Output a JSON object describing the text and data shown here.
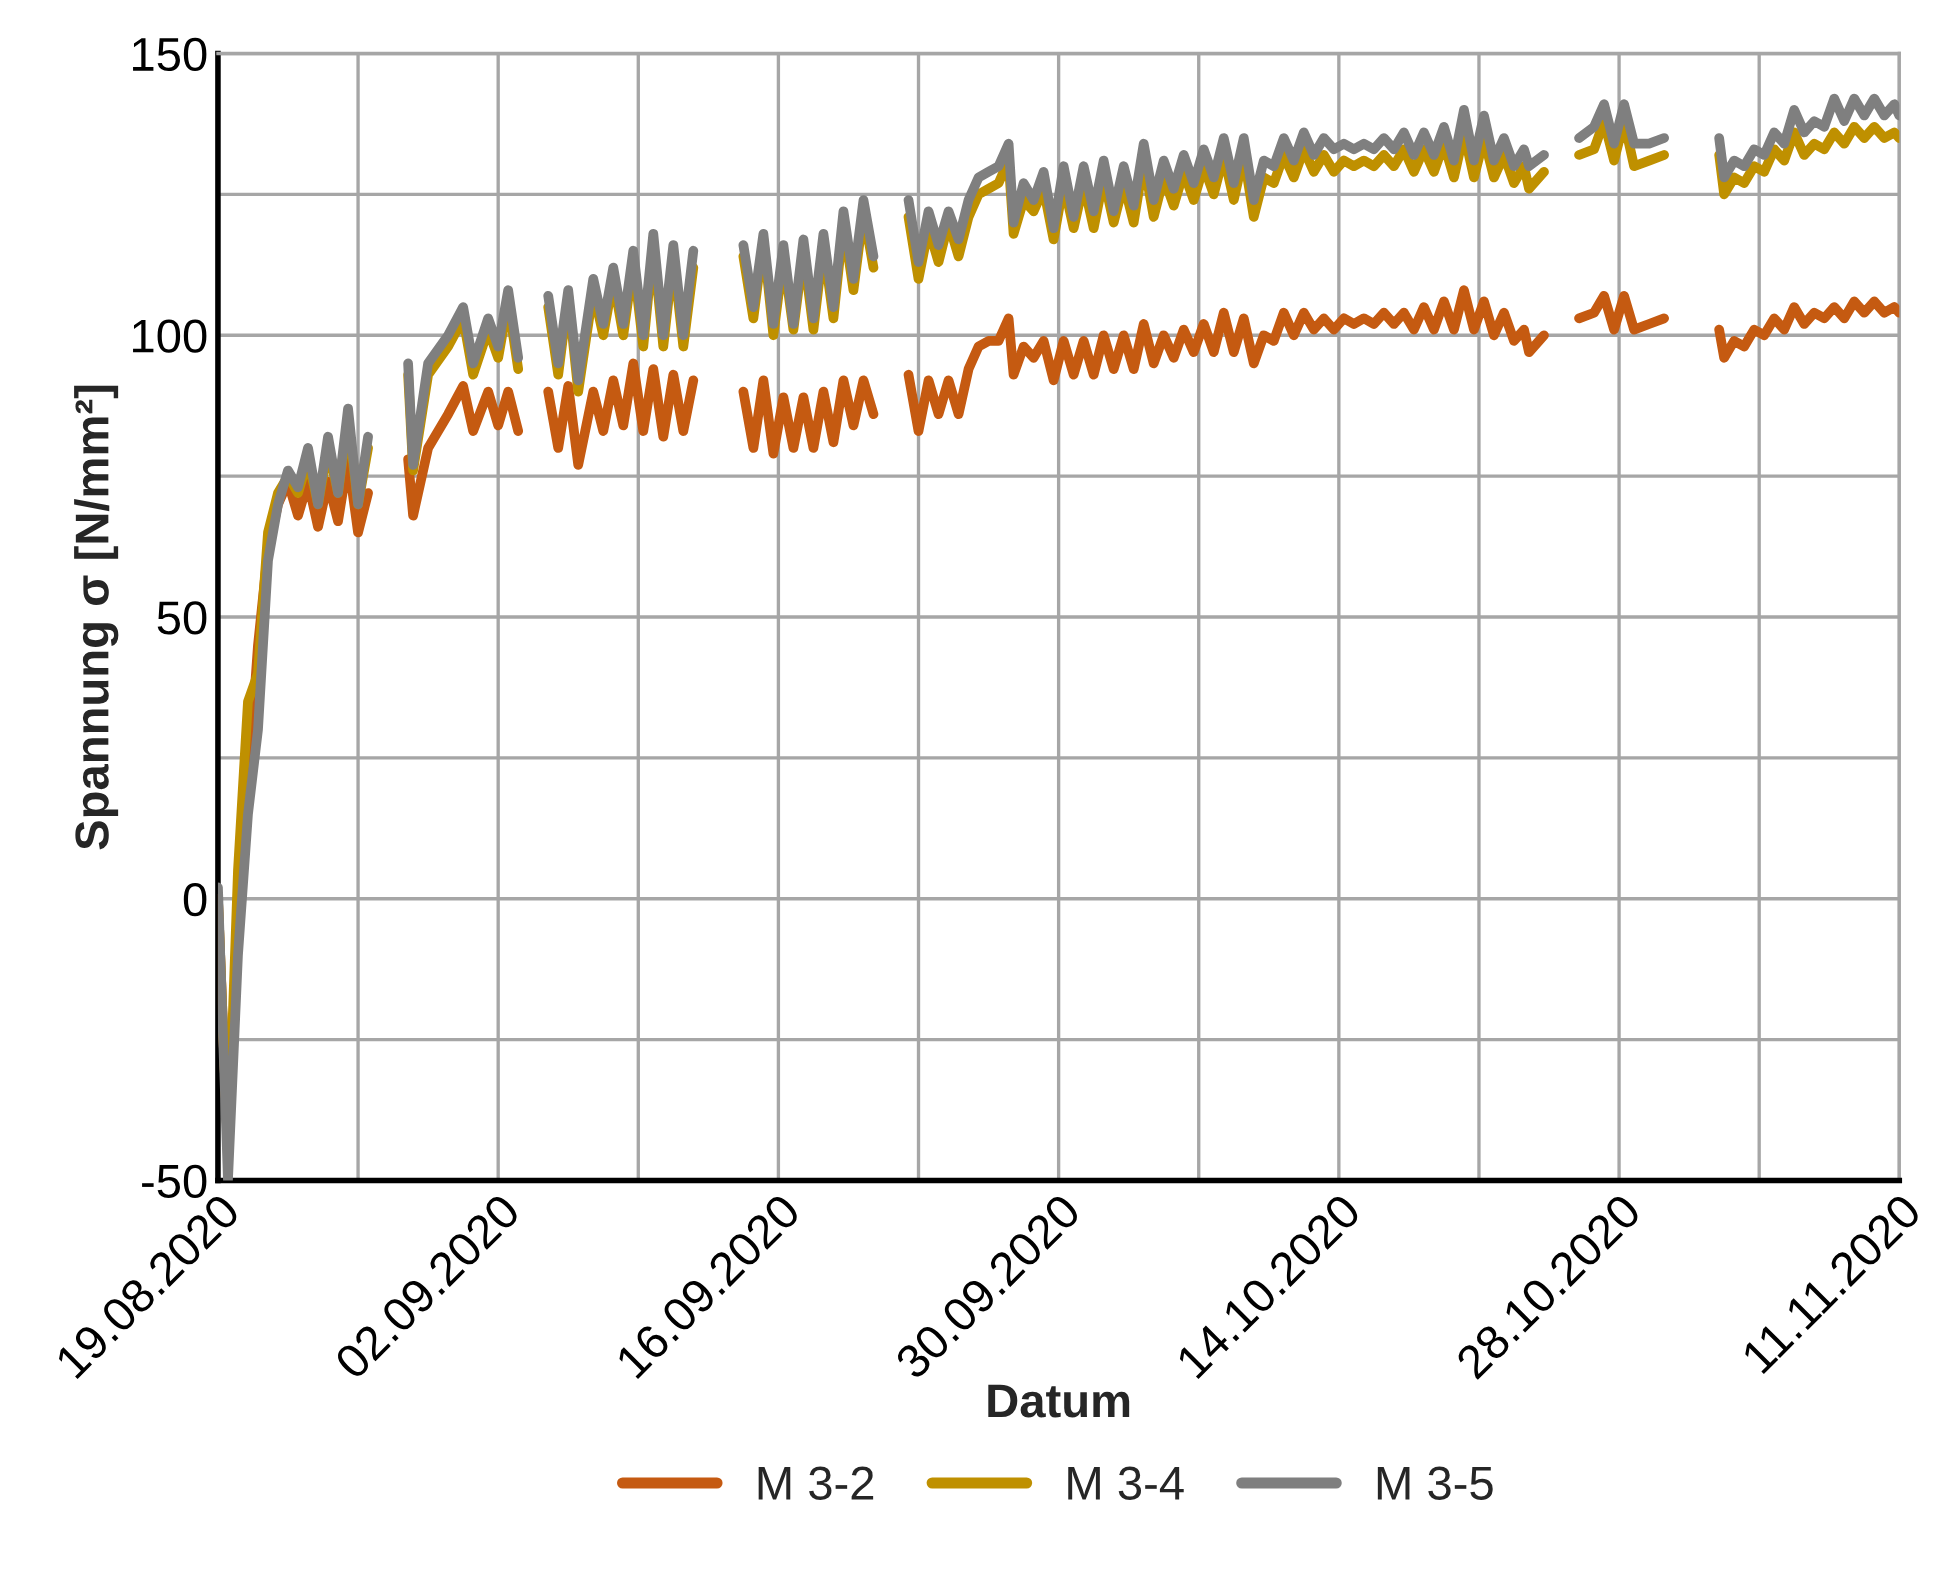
{
  "chart_data": {
    "type": "line",
    "xlabel": "Datum",
    "ylabel": "Spannung σ [N/mm²]",
    "x": [
      "2020-08-19T00:00",
      "2020-08-19T12:00",
      "2020-08-20T00:00",
      "2020-08-20T12:00",
      "2020-08-21T00:00",
      "2020-08-21T12:00",
      "2020-08-22T00:00",
      "2020-08-22T12:00",
      "2020-08-23T00:00",
      "2020-08-23T12:00",
      "2020-08-24T00:00",
      "2020-08-24T12:00",
      "2020-08-25T00:00",
      "2020-08-25T12:00",
      "2020-08-26T00:00",
      "2020-08-26T12:00",
      "2020-08-27T12:00",
      "2020-08-28T12:00",
      "2020-08-28T18:00",
      "2020-08-29T12:00",
      "2020-08-30T12:00",
      "2020-08-31T06:00",
      "2020-08-31T18:00",
      "2020-09-01T12:00",
      "2020-09-02T00:00",
      "2020-09-02T12:00",
      "2020-09-03T00:00",
      "2020-09-04T00:00",
      "2020-09-04T12:00",
      "2020-09-05T00:00",
      "2020-09-05T12:00",
      "2020-09-06T00:00",
      "2020-09-06T18:00",
      "2020-09-07T06:00",
      "2020-09-07T18:00",
      "2020-09-08T06:00",
      "2020-09-08T18:00",
      "2020-09-09T06:00",
      "2020-09-09T18:00",
      "2020-09-10T06:00",
      "2020-09-10T18:00",
      "2020-09-11T06:00",
      "2020-09-11T18:00",
      "2020-09-13T00:00",
      "2020-09-14T06:00",
      "2020-09-14T18:00",
      "2020-09-15T06:00",
      "2020-09-15T18:00",
      "2020-09-16T06:00",
      "2020-09-16T18:00",
      "2020-09-17T06:00",
      "2020-09-17T18:00",
      "2020-09-18T06:00",
      "2020-09-18T18:00",
      "2020-09-19T06:00",
      "2020-09-19T18:00",
      "2020-09-20T06:00",
      "2020-09-20T18:00",
      "2020-09-21T12:00",
      "2020-09-22T12:00",
      "2020-09-23T00:00",
      "2020-09-23T12:00",
      "2020-09-24T00:00",
      "2020-09-24T12:00",
      "2020-09-25T00:00",
      "2020-09-25T12:00",
      "2020-09-26T00:00",
      "2020-09-26T12:00",
      "2020-09-27T00:00",
      "2020-09-27T12:00",
      "2020-09-27T18:00",
      "2020-09-28T06:00",
      "2020-09-28T18:00",
      "2020-09-29T06:00",
      "2020-09-29T18:00",
      "2020-09-30T06:00",
      "2020-09-30T18:00",
      "2020-10-01T06:00",
      "2020-10-01T18:00",
      "2020-10-02T06:00",
      "2020-10-02T18:00",
      "2020-10-03T06:00",
      "2020-10-03T18:00",
      "2020-10-04T06:00",
      "2020-10-04T18:00",
      "2020-10-05T06:00",
      "2020-10-05T18:00",
      "2020-10-06T06:00",
      "2020-10-06T18:00",
      "2020-10-07T06:00",
      "2020-10-07T18:00",
      "2020-10-08T06:00",
      "2020-10-08T18:00",
      "2020-10-09T06:00",
      "2020-10-09T18:00",
      "2020-10-10T06:00",
      "2020-10-10T18:00",
      "2020-10-11T06:00",
      "2020-10-11T18:00",
      "2020-10-12T06:00",
      "2020-10-12T18:00",
      "2020-10-13T06:00",
      "2020-10-13T18:00",
      "2020-10-14T06:00",
      "2020-10-14T18:00",
      "2020-10-15T06:00",
      "2020-10-15T18:00",
      "2020-10-16T06:00",
      "2020-10-16T18:00",
      "2020-10-17T06:00",
      "2020-10-17T18:00",
      "2020-10-18T06:00",
      "2020-10-18T18:00",
      "2020-10-19T06:00",
      "2020-10-19T18:00",
      "2020-10-20T06:00",
      "2020-10-20T18:00",
      "2020-10-21T06:00",
      "2020-10-21T18:00",
      "2020-10-22T06:00",
      "2020-10-22T18:00",
      "2020-10-23T06:00",
      "2020-10-23T12:00",
      "2020-10-24T06:00",
      "2020-10-25T00:00",
      "2020-10-26T00:00",
      "2020-10-26T18:00",
      "2020-10-27T06:00",
      "2020-10-27T18:00",
      "2020-10-28T06:00",
      "2020-10-28T18:00",
      "2020-10-29T12:00",
      "2020-10-30T06:00",
      "2020-10-31T12:00",
      "2020-11-02T00:00",
      "2020-11-02T06:00",
      "2020-11-02T18:00",
      "2020-11-03T06:00",
      "2020-11-03T18:00",
      "2020-11-04T06:00",
      "2020-11-04T18:00",
      "2020-11-05T06:00",
      "2020-11-05T18:00",
      "2020-11-06T06:00",
      "2020-11-06T18:00",
      "2020-11-07T06:00",
      "2020-11-07T18:00",
      "2020-11-08T06:00",
      "2020-11-08T18:00",
      "2020-11-09T06:00",
      "2020-11-09T18:00",
      "2020-11-10T06:00",
      "2020-11-10T18:00",
      "2020-11-11T00:00"
    ],
    "series": [
      {
        "name": "M 3-2",
        "color": "#c55a11",
        "values": [
          0,
          -45,
          -5,
          20,
          45,
          62,
          70,
          74,
          68,
          74,
          66,
          74,
          67,
          78,
          65,
          72,
          null,
          78,
          68,
          80,
          86,
          91,
          83,
          90,
          84,
          90,
          83,
          null,
          90,
          80,
          91,
          77,
          90,
          83,
          92,
          84,
          95,
          83,
          94,
          82,
          93,
          83,
          92,
          null,
          90,
          80,
          92,
          79,
          89,
          80,
          89,
          80,
          90,
          81,
          92,
          84,
          92,
          86,
          null,
          93,
          83,
          92,
          86,
          92,
          86,
          94,
          98,
          99,
          99,
          103,
          93,
          98,
          96,
          99,
          92,
          99,
          93,
          99,
          93,
          100,
          94,
          100,
          94,
          102,
          95,
          100,
          96,
          101,
          97,
          102,
          97,
          104,
          97,
          103,
          95,
          100,
          99,
          104,
          100,
          104,
          101,
          103,
          101,
          103,
          102,
          103,
          102,
          104,
          102,
          104,
          101,
          105,
          101,
          106,
          101,
          108,
          101,
          106,
          100,
          104,
          99,
          101,
          97,
          100,
          null,
          103,
          104,
          107,
          101,
          107,
          101,
          102,
          103,
          null,
          101,
          96,
          99,
          98,
          101,
          100,
          103,
          101,
          105,
          102,
          104,
          103,
          105,
          103,
          106,
          104,
          106,
          104,
          105,
          104
        ]
      },
      {
        "name": "M 3-4",
        "color": "#bf9000",
        "values": [
          0,
          -45,
          5,
          35,
          40,
          65,
          72,
          75,
          72,
          78,
          70,
          80,
          72,
          85,
          70,
          80,
          null,
          93,
          76,
          93,
          98,
          103,
          93,
          101,
          96,
          106,
          94,
          null,
          105,
          93,
          107,
          90,
          108,
          100,
          110,
          100,
          113,
          98,
          116,
          98,
          114,
          98,
          112,
          null,
          114,
          103,
          117,
          100,
          114,
          101,
          115,
          101,
          116,
          103,
          120,
          108,
          122,
          112,
          null,
          121,
          110,
          119,
          113,
          120,
          114,
          121,
          125,
          126,
          127,
          131,
          118,
          124,
          122,
          126,
          117,
          127,
          119,
          127,
          119,
          128,
          120,
          127,
          120,
          131,
          121,
          128,
          123,
          129,
          124,
          130,
          125,
          132,
          124,
          132,
          121,
          128,
          127,
          132,
          128,
          133,
          129,
          132,
          129,
          131,
          130,
          131,
          130,
          132,
          130,
          133,
          129,
          133,
          129,
          134,
          128,
          136,
          128,
          135,
          128,
          132,
          127,
          130,
          126,
          129,
          null,
          132,
          133,
          138,
          131,
          138,
          130,
          131,
          132,
          null,
          132,
          125,
          128,
          127,
          130,
          129,
          133,
          131,
          136,
          132,
          134,
          133,
          136,
          134,
          137,
          135,
          137,
          135,
          136,
          135
        ]
      },
      {
        "name": "M 3-5",
        "color": "#7f7f7f",
        "values": [
          2,
          -50,
          -10,
          15,
          30,
          60,
          70,
          76,
          73,
          80,
          70,
          82,
          72,
          87,
          70,
          82,
          null,
          95,
          77,
          95,
          100,
          105,
          95,
          103,
          98,
          108,
          96,
          null,
          107,
          95,
          108,
          92,
          110,
          102,
          112,
          102,
          115,
          100,
          118,
          100,
          116,
          100,
          115,
          null,
          116,
          105,
          118,
          102,
          116,
          102,
          117,
          103,
          118,
          105,
          122,
          110,
          124,
          114,
          null,
          124,
          113,
          122,
          116,
          122,
          117,
          124,
          128,
          129,
          130,
          134,
          120,
          127,
          124,
          129,
          119,
          130,
          121,
          130,
          122,
          131,
          122,
          130,
          123,
          134,
          124,
          131,
          126,
          132,
          127,
          133,
          128,
          135,
          127,
          135,
          124,
          131,
          130,
          135,
          131,
          136,
          132,
          135,
          133,
          134,
          133,
          134,
          133,
          135,
          133,
          136,
          132,
          136,
          132,
          137,
          131,
          140,
          131,
          139,
          131,
          135,
          130,
          133,
          130,
          132,
          null,
          135,
          137,
          141,
          134,
          141,
          134,
          134,
          135,
          null,
          135,
          128,
          131,
          130,
          133,
          132,
          136,
          134,
          140,
          136,
          138,
          137,
          142,
          138,
          142,
          139,
          142,
          139,
          141,
          139
        ]
      }
    ],
    "xlim": [
      "2020-08-19",
      "2020-11-11"
    ],
    "xticks": [
      {
        "value": "2020-08-19",
        "label": "19.08.2020"
      },
      {
        "value": "2020-08-26",
        "label": null
      },
      {
        "value": "2020-09-02",
        "label": "02.09.2020"
      },
      {
        "value": "2020-09-09",
        "label": null
      },
      {
        "value": "2020-09-16",
        "label": "16.09.2020"
      },
      {
        "value": "2020-09-23",
        "label": null
      },
      {
        "value": "2020-09-30",
        "label": "30.09.2020"
      },
      {
        "value": "2020-10-07",
        "label": null
      },
      {
        "value": "2020-10-14",
        "label": "14.10.2020"
      },
      {
        "value": "2020-10-21",
        "label": null
      },
      {
        "value": "2020-10-28",
        "label": "28.10.2020"
      },
      {
        "value": "2020-11-04",
        "label": null
      },
      {
        "value": "2020-11-11",
        "label": "11.11.2020"
      }
    ],
    "ylim": [
      -50,
      150
    ],
    "yticks": [
      -50,
      {
        "value": -25,
        "label": null
      },
      0,
      {
        "value": 25,
        "label": null
      },
      50,
      {
        "value": 75,
        "label": null
      },
      100,
      {
        "value": 125,
        "label": null
      },
      150
    ],
    "grid": true,
    "legend": "bottom",
    "marker": "none",
    "line_style": "solid"
  }
}
